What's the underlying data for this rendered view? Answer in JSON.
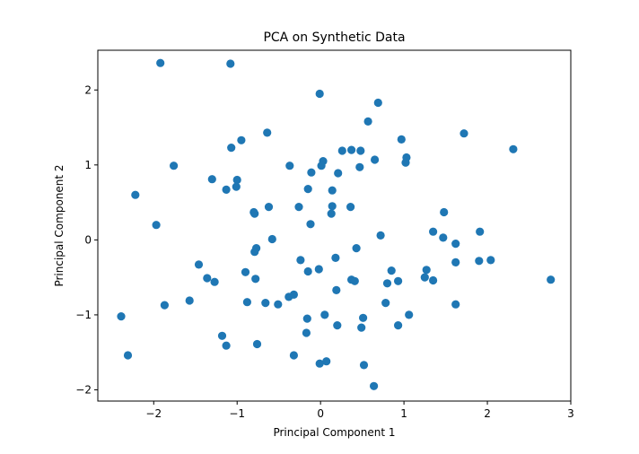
{
  "chart_data": {
    "type": "scatter",
    "title": "PCA on Synthetic Data",
    "xlabel": "Principal Component 1",
    "ylabel": "Principal Component 2",
    "xlim": [
      -2.67,
      3.0
    ],
    "ylim": [
      -2.15,
      2.53
    ],
    "xticks": [
      -2,
      -1,
      0,
      1,
      2,
      3
    ],
    "yticks": [
      -2,
      -1,
      0,
      1,
      2
    ],
    "grid": false,
    "marker_color": "#1f77b4",
    "points": [
      [
        -1.92,
        2.36
      ],
      [
        -1.08,
        2.35
      ],
      [
        -0.01,
        1.95
      ],
      [
        0.69,
        1.83
      ],
      [
        0.57,
        1.58
      ],
      [
        -0.64,
        1.43
      ],
      [
        -0.95,
        1.33
      ],
      [
        -1.07,
        1.23
      ],
      [
        0.97,
        1.34
      ],
      [
        1.72,
        1.42
      ],
      [
        2.31,
        1.21
      ],
      [
        0.26,
        1.19
      ],
      [
        0.37,
        1.2
      ],
      [
        0.48,
        1.19
      ],
      [
        1.03,
        1.1
      ],
      [
        1.02,
        1.03
      ],
      [
        0.65,
        1.07
      ],
      [
        0.03,
        1.05
      ],
      [
        0.01,
        0.99
      ],
      [
        0.47,
        0.97
      ],
      [
        -0.37,
        0.99
      ],
      [
        -1.76,
        0.99
      ],
      [
        -0.11,
        0.9
      ],
      [
        0.21,
        0.89
      ],
      [
        -1.3,
        0.81
      ],
      [
        -1.0,
        0.8
      ],
      [
        -1.01,
        0.71
      ],
      [
        -1.13,
        0.67
      ],
      [
        -0.15,
        0.68
      ],
      [
        0.14,
        0.66
      ],
      [
        -2.22,
        0.6
      ],
      [
        -0.26,
        0.44
      ],
      [
        0.14,
        0.45
      ],
      [
        0.36,
        0.44
      ],
      [
        -0.62,
        0.44
      ],
      [
        -0.8,
        0.37
      ],
      [
        -0.79,
        0.35
      ],
      [
        0.13,
        0.35
      ],
      [
        1.48,
        0.37
      ],
      [
        -1.97,
        0.2
      ],
      [
        -0.12,
        0.21
      ],
      [
        1.35,
        0.11
      ],
      [
        1.91,
        0.11
      ],
      [
        0.72,
        0.06
      ],
      [
        1.47,
        0.03
      ],
      [
        1.62,
        -0.05
      ],
      [
        -0.58,
        0.01
      ],
      [
        -0.77,
        -0.11
      ],
      [
        -0.79,
        -0.16
      ],
      [
        0.43,
        -0.11
      ],
      [
        -1.46,
        -0.33
      ],
      [
        -0.24,
        -0.27
      ],
      [
        -0.02,
        -0.39
      ],
      [
        -0.15,
        -0.42
      ],
      [
        0.18,
        -0.24
      ],
      [
        1.62,
        -0.3
      ],
      [
        1.9,
        -0.28
      ],
      [
        2.04,
        -0.27
      ],
      [
        1.27,
        -0.4
      ],
      [
        0.85,
        -0.41
      ],
      [
        -0.9,
        -0.43
      ],
      [
        -0.78,
        -0.52
      ],
      [
        -1.36,
        -0.51
      ],
      [
        -1.27,
        -0.56
      ],
      [
        1.25,
        -0.5
      ],
      [
        1.35,
        -0.54
      ],
      [
        0.37,
        -0.53
      ],
      [
        0.41,
        -0.55
      ],
      [
        0.8,
        -0.58
      ],
      [
        0.93,
        -0.55
      ],
      [
        2.76,
        -0.53
      ],
      [
        0.19,
        -0.67
      ],
      [
        -0.38,
        -0.76
      ],
      [
        -0.32,
        -0.73
      ],
      [
        -1.57,
        -0.81
      ],
      [
        -1.87,
        -0.87
      ],
      [
        -0.88,
        -0.83
      ],
      [
        -0.66,
        -0.84
      ],
      [
        -0.51,
        -0.86
      ],
      [
        0.78,
        -0.84
      ],
      [
        1.62,
        -0.86
      ],
      [
        -2.39,
        -1.02
      ],
      [
        0.05,
        -1.0
      ],
      [
        -0.16,
        -1.05
      ],
      [
        0.51,
        -1.04
      ],
      [
        1.06,
        -1.0
      ],
      [
        0.2,
        -1.14
      ],
      [
        0.49,
        -1.17
      ],
      [
        0.93,
        -1.14
      ],
      [
        -0.17,
        -1.24
      ],
      [
        -1.18,
        -1.28
      ],
      [
        -1.13,
        -1.41
      ],
      [
        -0.76,
        -1.39
      ],
      [
        -2.31,
        -1.54
      ],
      [
        -0.32,
        -1.54
      ],
      [
        -0.01,
        -1.65
      ],
      [
        0.07,
        -1.62
      ],
      [
        0.52,
        -1.67
      ],
      [
        0.64,
        -1.95
      ]
    ]
  }
}
